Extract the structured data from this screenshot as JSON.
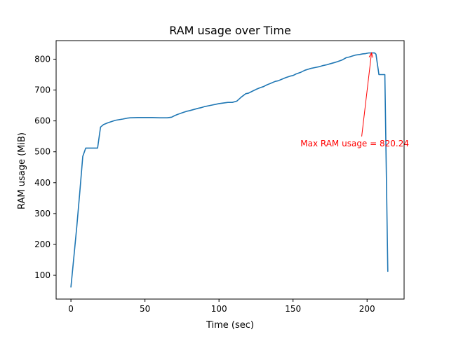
{
  "chart_data": {
    "type": "line",
    "title": "RAM usage over Time",
    "xlabel": "Time (sec)",
    "ylabel": "RAM usage (MiB)",
    "xlim": [
      -10,
      225
    ],
    "ylim": [
      23,
      860
    ],
    "x_ticks": [
      0,
      50,
      100,
      150,
      200
    ],
    "y_ticks": [
      100,
      200,
      300,
      400,
      500,
      600,
      700,
      800
    ],
    "grid": false,
    "line_color": "#1f77b4",
    "series": [
      {
        "x": [
          0,
          2,
          4,
          6,
          8,
          10,
          12,
          14,
          16,
          18,
          20,
          22,
          25,
          30,
          35,
          38,
          40,
          45,
          50,
          55,
          60,
          65,
          68,
          70,
          72,
          75,
          78,
          80,
          83,
          86,
          88,
          90,
          93,
          95,
          98,
          100,
          103,
          106,
          109,
          112,
          115,
          118,
          120,
          122,
          125,
          128,
          130,
          132,
          135,
          138,
          140,
          142,
          145,
          148,
          150,
          152,
          155,
          158,
          160,
          162,
          165,
          168,
          170,
          173,
          175,
          178,
          180,
          183,
          186,
          188,
          190,
          192,
          195,
          197,
          199,
          201,
          203,
          205,
          206,
          208,
          210,
          212,
          214
        ],
        "y": [
          62,
          160,
          260,
          370,
          485,
          512,
          512,
          512,
          512,
          512,
          580,
          588,
          594,
          602,
          606,
          609,
          610,
          611,
          611,
          611,
          610,
          610,
          612,
          617,
          621,
          626,
          631,
          633,
          637,
          641,
          643,
          646,
          649,
          651,
          654,
          656,
          658,
          660,
          660,
          664,
          677,
          688,
          690,
          695,
          702,
          708,
          711,
          716,
          722,
          728,
          730,
          734,
          740,
          745,
          747,
          752,
          757,
          764,
          767,
          770,
          773,
          776,
          779,
          782,
          785,
          789,
          792,
          797,
          805,
          807,
          810,
          813,
          815,
          817,
          818,
          820,
          820.24,
          820.24,
          816,
          750,
          750,
          750,
          113
        ]
      }
    ],
    "annotations": [
      {
        "text": "Max RAM usage = 820.24",
        "color": "#ff0000",
        "x": 203,
        "y": 820.24,
        "text_x": 155,
        "text_y": 518
      }
    ]
  }
}
